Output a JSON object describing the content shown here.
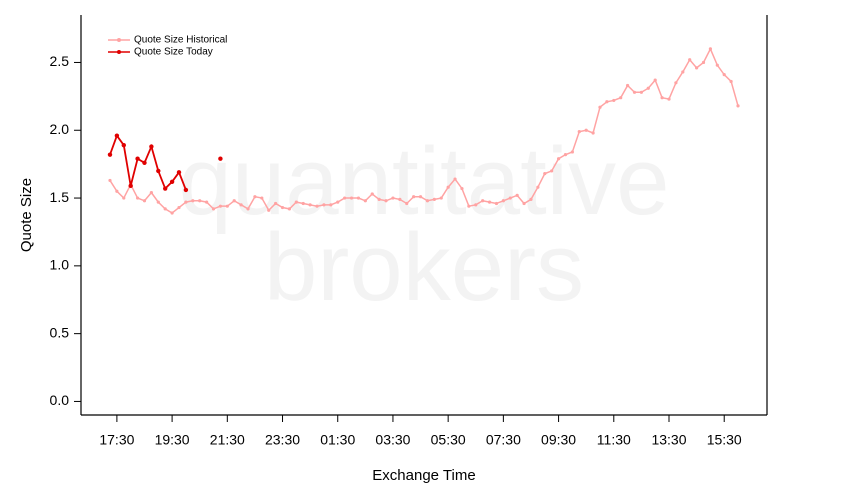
{
  "chart_data": {
    "type": "line",
    "watermark": [
      "quantitative",
      "brokers"
    ],
    "x_label": "Exchange Time",
    "y_label": "Quote Size",
    "legend": "top-left",
    "xlim": [
      16.2,
      41.05
    ],
    "ylim": [
      -0.1,
      2.85
    ],
    "xticks": [
      {
        "value": 17.5,
        "label": "17:30"
      },
      {
        "value": 19.5,
        "label": "19:30"
      },
      {
        "value": 21.5,
        "label": "21:30"
      },
      {
        "value": 23.5,
        "label": "23:30"
      },
      {
        "value": 25.5,
        "label": "01:30"
      },
      {
        "value": 27.5,
        "label": "03:30"
      },
      {
        "value": 29.5,
        "label": "05:30"
      },
      {
        "value": 31.5,
        "label": "07:30"
      },
      {
        "value": 33.5,
        "label": "09:30"
      },
      {
        "value": 35.5,
        "label": "11:30"
      },
      {
        "value": 37.5,
        "label": "13:30"
      },
      {
        "value": 39.5,
        "label": "15:30"
      }
    ],
    "yticks": [
      {
        "value": 0,
        "label": "0.0"
      },
      {
        "value": 0.5,
        "label": "0.5"
      },
      {
        "value": 1,
        "label": "1.0"
      },
      {
        "value": 1.5,
        "label": "1.5"
      },
      {
        "value": 2,
        "label": "2.0"
      },
      {
        "value": 2.5,
        "label": "2.5"
      }
    ],
    "x": [
      17.25,
      17.5,
      17.75,
      18,
      18.25,
      18.5,
      18.75,
      19,
      19.25,
      19.5,
      19.75,
      20,
      20.25,
      20.5,
      20.75,
      21,
      21.25,
      21.5,
      21.75,
      22,
      22.25,
      22.5,
      22.75,
      23,
      23.25,
      23.5,
      23.75,
      24,
      24.25,
      24.5,
      24.75,
      25,
      25.25,
      25.5,
      25.75,
      26,
      26.25,
      26.5,
      26.75,
      27,
      27.25,
      27.5,
      27.75,
      28,
      28.25,
      28.5,
      28.75,
      29,
      29.25,
      29.5,
      29.75,
      30,
      30.25,
      30.5,
      30.75,
      31,
      31.25,
      31.5,
      31.75,
      32,
      32.25,
      32.5,
      32.75,
      33,
      33.25,
      33.5,
      33.75,
      34,
      34.25,
      34.5,
      34.75,
      35,
      35.25,
      35.5,
      35.75,
      36,
      36.25,
      36.5,
      36.75,
      37,
      37.25,
      37.5,
      37.75,
      38,
      38.25,
      38.5,
      38.75,
      39,
      39.25,
      39.5,
      39.75,
      40
    ],
    "series": [
      {
        "name": "Quote Size Historical",
        "color": "#ffa3a3",
        "values": [
          1.63,
          1.55,
          1.5,
          1.6,
          1.5,
          1.48,
          1.54,
          1.47,
          1.42,
          1.39,
          1.43,
          1.47,
          1.48,
          1.48,
          1.47,
          1.42,
          1.44,
          1.44,
          1.48,
          1.45,
          1.42,
          1.51,
          1.5,
          1.41,
          1.46,
          1.43,
          1.42,
          1.47,
          1.46,
          1.45,
          1.44,
          1.45,
          1.45,
          1.47,
          1.5,
          1.5,
          1.5,
          1.48,
          1.53,
          1.49,
          1.48,
          1.5,
          1.49,
          1.46,
          1.51,
          1.51,
          1.48,
          1.49,
          1.5,
          1.58,
          1.64,
          1.57,
          1.44,
          1.45,
          1.48,
          1.47,
          1.46,
          1.48,
          1.5,
          1.52,
          1.46,
          1.49,
          1.58,
          1.68,
          1.7,
          1.79,
          1.82,
          1.84,
          1.99,
          2.0,
          1.98,
          2.17,
          2.21,
          2.22,
          2.24,
          2.33,
          2.28,
          2.28,
          2.31,
          2.37,
          2.24,
          2.23,
          2.35,
          2.43,
          2.52,
          2.46,
          2.5,
          2.6,
          2.48,
          2.41,
          2.36,
          2.18
        ]
      },
      {
        "name": "Quote Size Today",
        "color": "#e00000",
        "values": [
          1.82,
          1.96,
          1.89,
          1.59,
          1.79,
          1.76,
          1.88,
          1.7,
          1.57,
          1.62,
          1.69,
          1.56,
          null,
          null,
          null,
          null,
          1.79,
          null,
          null,
          null,
          null,
          null,
          null,
          null,
          null,
          null,
          null,
          null,
          null,
          null,
          null,
          null,
          null,
          null,
          null,
          null,
          null,
          null,
          null,
          null,
          null,
          null,
          null,
          null,
          null,
          null,
          null,
          null,
          null,
          null,
          null,
          null,
          null,
          null,
          null,
          null,
          null,
          null,
          null,
          null,
          null,
          null,
          null,
          null,
          null,
          null,
          null,
          null,
          null,
          null,
          null,
          null,
          null,
          null,
          null,
          null,
          null,
          null,
          null,
          null,
          null,
          null,
          null,
          null,
          null,
          null,
          null,
          null,
          null,
          null,
          null,
          null
        ]
      }
    ]
  }
}
